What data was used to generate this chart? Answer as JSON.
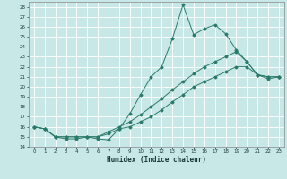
{
  "xlabel": "Humidex (Indice chaleur)",
  "ylabel": "",
  "background_color": "#c8e8e8",
  "grid_color": "#ffffff",
  "line_color": "#2a7a6a",
  "xlim": [
    -0.5,
    23.5
  ],
  "ylim": [
    14,
    28.5
  ],
  "xticks": [
    0,
    1,
    2,
    3,
    4,
    5,
    6,
    7,
    8,
    9,
    10,
    11,
    12,
    13,
    14,
    15,
    16,
    17,
    18,
    19,
    20,
    21,
    22,
    23
  ],
  "yticks": [
    14,
    15,
    16,
    17,
    18,
    19,
    20,
    21,
    22,
    23,
    24,
    25,
    26,
    27,
    28
  ],
  "line1_x": [
    0,
    1,
    2,
    3,
    4,
    5,
    6,
    7,
    8,
    9,
    10,
    11,
    12,
    13,
    14,
    15,
    16,
    17,
    18,
    19,
    20,
    21,
    22,
    23
  ],
  "line1_y": [
    16.0,
    15.8,
    15.0,
    14.8,
    14.8,
    15.0,
    14.8,
    14.7,
    15.8,
    17.3,
    19.2,
    21.0,
    22.0,
    24.8,
    28.2,
    25.2,
    25.8,
    26.2,
    25.3,
    23.7,
    22.5,
    21.2,
    21.0,
    21.0
  ],
  "line2_x": [
    0,
    1,
    2,
    3,
    4,
    5,
    6,
    7,
    8,
    9,
    10,
    11,
    12,
    13,
    14,
    15,
    16,
    17,
    18,
    19,
    20,
    21,
    22,
    23
  ],
  "line2_y": [
    16.0,
    15.8,
    15.0,
    15.0,
    15.0,
    15.0,
    15.0,
    15.5,
    16.0,
    16.5,
    17.2,
    18.0,
    18.8,
    19.7,
    20.5,
    21.3,
    22.0,
    22.5,
    23.0,
    23.5,
    22.5,
    21.2,
    21.0,
    21.0
  ],
  "line3_x": [
    0,
    1,
    2,
    3,
    4,
    5,
    6,
    7,
    8,
    9,
    10,
    11,
    12,
    13,
    14,
    15,
    16,
    17,
    18,
    19,
    20,
    21,
    22,
    23
  ],
  "line3_y": [
    16.0,
    15.8,
    15.0,
    15.0,
    15.0,
    15.0,
    15.0,
    15.3,
    15.8,
    16.0,
    16.5,
    17.0,
    17.7,
    18.5,
    19.2,
    20.0,
    20.5,
    21.0,
    21.5,
    22.0,
    22.0,
    21.2,
    20.8,
    21.0
  ]
}
